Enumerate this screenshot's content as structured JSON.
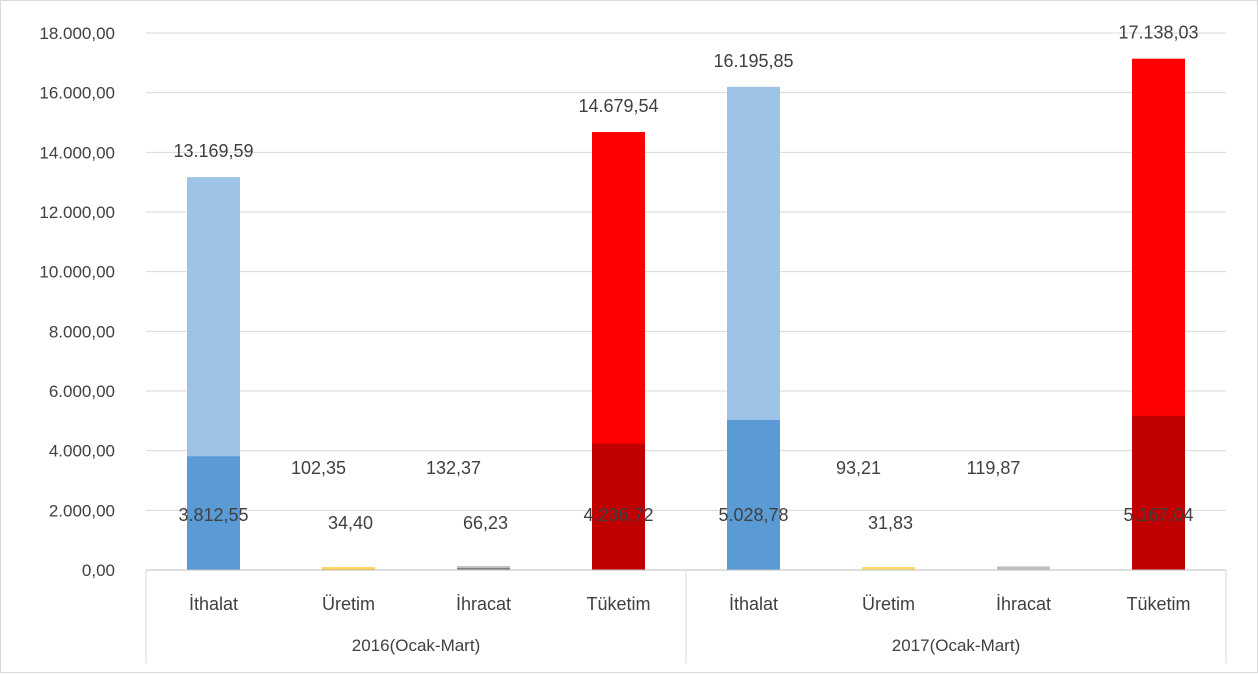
{
  "chart_data": {
    "type": "bar",
    "stacked": true,
    "stack_mode": "overlay",
    "title": "",
    "xlabel": "",
    "ylabel": "",
    "ylim": [
      0,
      18000
    ],
    "y_ticks": [
      "0,00",
      "2.000,00",
      "4.000,00",
      "6.000,00",
      "8.000,00",
      "10.000,00",
      "12.000,00",
      "14.000,00",
      "16.000,00",
      "18.000,00"
    ],
    "y_tick_values": [
      0,
      2000,
      4000,
      6000,
      8000,
      10000,
      12000,
      14000,
      16000,
      18000
    ],
    "grid": true,
    "legend": "none",
    "groups": [
      {
        "label": "2016(Ocak-Mart)",
        "bars": [
          {
            "category": "İthalat",
            "lower": 3812.55,
            "lower_label": "3.812,55",
            "total": 13169.59,
            "total_label": "13.169,59",
            "lower_color": "#5b9bd5",
            "upper_color": "#9dc3e6"
          },
          {
            "category": "Üretim",
            "lower": 34.4,
            "lower_label": "34,40",
            "total": 102.35,
            "total_label": "102,35",
            "lower_color": "#ffc000",
            "upper_color": "#ffd966"
          },
          {
            "category": "İhracat",
            "lower": 66.23,
            "lower_label": "66,23",
            "total": 132.37,
            "total_label": "132,37",
            "lower_color": "#7f7f7f",
            "upper_color": "#bfbfbf"
          },
          {
            "category": "Tüketim",
            "lower": 4236.72,
            "lower_label": "4.236,72",
            "total": 14679.54,
            "total_label": "14.679,54",
            "lower_color": "#c00000",
            "upper_color": "#ff0000"
          }
        ]
      },
      {
        "label": "2017(Ocak-Mart)",
        "bars": [
          {
            "category": "İthalat",
            "lower": 5028.78,
            "lower_label": "5.028,78",
            "total": 16195.85,
            "total_label": "16.195,85",
            "lower_color": "#5b9bd5",
            "upper_color": "#9dc3e6"
          },
          {
            "category": "Üretim",
            "lower": 31.83,
            "lower_label": "31,83",
            "total": 93.21,
            "total_label": "93,21",
            "lower_color": "#ffc000",
            "upper_color": "#ffd966"
          },
          {
            "category": "İhracat",
            "lower": null,
            "lower_label": "",
            "total": 119.87,
            "total_label": "119,87",
            "lower_color": "#7f7f7f",
            "upper_color": "#bfbfbf"
          },
          {
            "category": "Tüketim",
            "lower": 5167.04,
            "lower_label": "5.167,04",
            "total": 17138.03,
            "total_label": "17.138,03",
            "lower_color": "#c00000",
            "upper_color": "#ff0000"
          }
        ]
      }
    ]
  }
}
